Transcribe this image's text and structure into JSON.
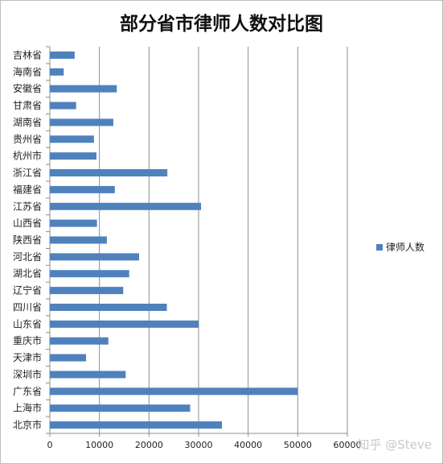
{
  "chart_data": {
    "type": "bar",
    "orientation": "horizontal",
    "title": "部分省市律师人数对比图",
    "categories": [
      "吉林省",
      "海南省",
      "安徽省",
      "甘肃省",
      "湖南省",
      "贵州省",
      "杭州市",
      "浙江省",
      "福建省",
      "江苏省",
      "山西省",
      "陕西省",
      "河北省",
      "湖北省",
      "辽宁省",
      "四川省",
      "山东省",
      "重庆市",
      "天津市",
      "深圳市",
      "广东省",
      "上海市",
      "北京市"
    ],
    "series": [
      {
        "name": "律师人数",
        "values": [
          5000,
          2800,
          13500,
          5300,
          12800,
          8900,
          9400,
          23700,
          13100,
          30500,
          9500,
          11500,
          18000,
          16000,
          14800,
          23600,
          30000,
          11800,
          7300,
          15300,
          50000,
          28300,
          34700
        ],
        "color": "#4f81bd"
      }
    ],
    "xlim": [
      0,
      60000
    ],
    "xticks": [
      "0",
      "10000",
      "20000",
      "30000",
      "40000",
      "50000",
      "60000"
    ],
    "grid": true,
    "legend_position": "right"
  },
  "watermark": "知乎 @Steve"
}
